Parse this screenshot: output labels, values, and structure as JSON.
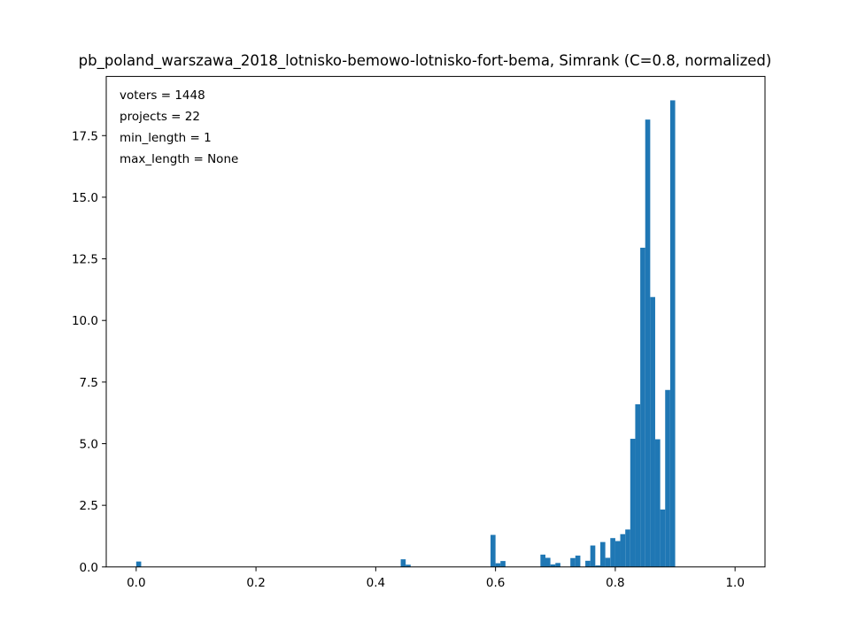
{
  "chart_data": {
    "type": "bar",
    "title": "pb_poland_warszawa_2018_lotnisko-bemowo-lotnisko-fort-bema, Simrank (C=0.8, normalized)",
    "xlabel": "",
    "ylabel": "",
    "xlim": [
      -0.05,
      1.05
    ],
    "ylim": [
      0,
      19.9
    ],
    "bin_width": 0.00833,
    "xticks": [
      "0.0",
      "0.2",
      "0.4",
      "0.6",
      "0.8",
      "1.0"
    ],
    "xtick_values": [
      0.0,
      0.2,
      0.4,
      0.6,
      0.8,
      1.0
    ],
    "yticks": [
      "0.0",
      "2.5",
      "5.0",
      "7.5",
      "10.0",
      "12.5",
      "15.0",
      "17.5"
    ],
    "ytick_values": [
      0.0,
      2.5,
      5.0,
      7.5,
      10.0,
      12.5,
      15.0,
      17.5
    ],
    "color": "#1f77b4",
    "annotations": [
      "voters = 1448",
      "projects = 22",
      "min_length = 1",
      "max_length = None"
    ],
    "bins": [
      {
        "x": 0.0,
        "value": 0.22
      },
      {
        "x": 0.4417,
        "value": 0.31
      },
      {
        "x": 0.45,
        "value": 0.09
      },
      {
        "x": 0.5917,
        "value": 1.3
      },
      {
        "x": 0.6,
        "value": 0.15
      },
      {
        "x": 0.6083,
        "value": 0.24
      },
      {
        "x": 0.675,
        "value": 0.5
      },
      {
        "x": 0.6833,
        "value": 0.37
      },
      {
        "x": 0.6917,
        "value": 0.1
      },
      {
        "x": 0.7,
        "value": 0.16
      },
      {
        "x": 0.725,
        "value": 0.36
      },
      {
        "x": 0.7333,
        "value": 0.46
      },
      {
        "x": 0.75,
        "value": 0.25
      },
      {
        "x": 0.7583,
        "value": 0.87
      },
      {
        "x": 0.7667,
        "value": 0.06
      },
      {
        "x": 0.775,
        "value": 1.01
      },
      {
        "x": 0.7833,
        "value": 0.37
      },
      {
        "x": 0.7917,
        "value": 1.17
      },
      {
        "x": 0.8,
        "value": 1.05
      },
      {
        "x": 0.8083,
        "value": 1.33
      },
      {
        "x": 0.8167,
        "value": 1.52
      },
      {
        "x": 0.825,
        "value": 5.2
      },
      {
        "x": 0.8333,
        "value": 6.6
      },
      {
        "x": 0.8417,
        "value": 12.95
      },
      {
        "x": 0.85,
        "value": 18.15
      },
      {
        "x": 0.8583,
        "value": 10.95
      },
      {
        "x": 0.8667,
        "value": 5.18
      },
      {
        "x": 0.875,
        "value": 2.33
      },
      {
        "x": 0.8833,
        "value": 7.18
      },
      {
        "x": 0.8917,
        "value": 18.93
      }
    ]
  }
}
